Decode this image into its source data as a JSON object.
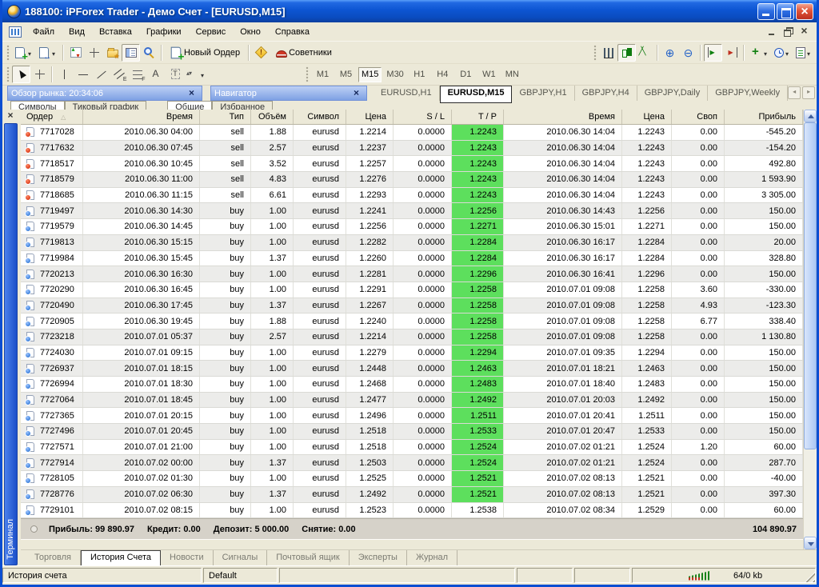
{
  "window": {
    "title": "188100: iPForex Trader - Демо Счет - [EURUSD,M15]"
  },
  "menu": {
    "items": [
      "Файл",
      "Вид",
      "Вставка",
      "Графики",
      "Сервис",
      "Окно",
      "Справка"
    ]
  },
  "toolbar": {
    "new_order_label": "Новый Ордер",
    "advisors_label": "Советники"
  },
  "timeframes": {
    "items": [
      "M1",
      "M5",
      "M15",
      "M30",
      "H1",
      "H4",
      "D1",
      "W1",
      "MN"
    ],
    "active": "M15"
  },
  "panels": {
    "market_watch_title": "Обзор рынка: 20:34:06",
    "market_watch_tabs": [
      "Символы",
      "Тиковый график"
    ],
    "navigator_title": "Навигатор",
    "navigator_tabs": [
      "Общие",
      "Избранное"
    ]
  },
  "chart_tabs": {
    "items": [
      "EURUSD,H1",
      "EURUSD,M15",
      "GBPJPY,H1",
      "GBPJPY,H4",
      "GBPJPY,Daily",
      "GBPJPY,Weekly"
    ],
    "active": "EURUSD,M15"
  },
  "terminal": {
    "vertical_title": "Терминал",
    "sorted_column": "Ордер",
    "sort_direction": "asc",
    "columns": [
      "Ордер",
      "Время",
      "Тип",
      "Объём",
      "Символ",
      "Цена",
      "S / L",
      "T / P",
      "Время",
      "Цена",
      "Своп",
      "Прибыль"
    ],
    "rows": [
      {
        "order": "7717028",
        "open_time": "2010.06.30 04:00",
        "type": "sell",
        "volume": "1.88",
        "symbol": "eurusd",
        "price": "1.2214",
        "sl": "0.0000",
        "tp": "1.2243",
        "tp_hit": true,
        "close_time": "2010.06.30 14:04",
        "close_price": "1.2243",
        "swap": "0.00",
        "profit": "-545.20"
      },
      {
        "order": "7717632",
        "open_time": "2010.06.30 07:45",
        "type": "sell",
        "volume": "2.57",
        "symbol": "eurusd",
        "price": "1.2237",
        "sl": "0.0000",
        "tp": "1.2243",
        "tp_hit": true,
        "close_time": "2010.06.30 14:04",
        "close_price": "1.2243",
        "swap": "0.00",
        "profit": "-154.20"
      },
      {
        "order": "7718517",
        "open_time": "2010.06.30 10:45",
        "type": "sell",
        "volume": "3.52",
        "symbol": "eurusd",
        "price": "1.2257",
        "sl": "0.0000",
        "tp": "1.2243",
        "tp_hit": true,
        "close_time": "2010.06.30 14:04",
        "close_price": "1.2243",
        "swap": "0.00",
        "profit": "492.80"
      },
      {
        "order": "7718579",
        "open_time": "2010.06.30 11:00",
        "type": "sell",
        "volume": "4.83",
        "symbol": "eurusd",
        "price": "1.2276",
        "sl": "0.0000",
        "tp": "1.2243",
        "tp_hit": true,
        "close_time": "2010.06.30 14:04",
        "close_price": "1.2243",
        "swap": "0.00",
        "profit": "1 593.90"
      },
      {
        "order": "7718685",
        "open_time": "2010.06.30 11:15",
        "type": "sell",
        "volume": "6.61",
        "symbol": "eurusd",
        "price": "1.2293",
        "sl": "0.0000",
        "tp": "1.2243",
        "tp_hit": true,
        "close_time": "2010.06.30 14:04",
        "close_price": "1.2243",
        "swap": "0.00",
        "profit": "3 305.00"
      },
      {
        "order": "7719497",
        "open_time": "2010.06.30 14:30",
        "type": "buy",
        "volume": "1.00",
        "symbol": "eurusd",
        "price": "1.2241",
        "sl": "0.0000",
        "tp": "1.2256",
        "tp_hit": true,
        "close_time": "2010.06.30 14:43",
        "close_price": "1.2256",
        "swap": "0.00",
        "profit": "150.00"
      },
      {
        "order": "7719579",
        "open_time": "2010.06.30 14:45",
        "type": "buy",
        "volume": "1.00",
        "symbol": "eurusd",
        "price": "1.2256",
        "sl": "0.0000",
        "tp": "1.2271",
        "tp_hit": true,
        "close_time": "2010.06.30 15:01",
        "close_price": "1.2271",
        "swap": "0.00",
        "profit": "150.00"
      },
      {
        "order": "7719813",
        "open_time": "2010.06.30 15:15",
        "type": "buy",
        "volume": "1.00",
        "symbol": "eurusd",
        "price": "1.2282",
        "sl": "0.0000",
        "tp": "1.2284",
        "tp_hit": true,
        "close_time": "2010.06.30 16:17",
        "close_price": "1.2284",
        "swap": "0.00",
        "profit": "20.00"
      },
      {
        "order": "7719984",
        "open_time": "2010.06.30 15:45",
        "type": "buy",
        "volume": "1.37",
        "symbol": "eurusd",
        "price": "1.2260",
        "sl": "0.0000",
        "tp": "1.2284",
        "tp_hit": true,
        "close_time": "2010.06.30 16:17",
        "close_price": "1.2284",
        "swap": "0.00",
        "profit": "328.80"
      },
      {
        "order": "7720213",
        "open_time": "2010.06.30 16:30",
        "type": "buy",
        "volume": "1.00",
        "symbol": "eurusd",
        "price": "1.2281",
        "sl": "0.0000",
        "tp": "1.2296",
        "tp_hit": true,
        "close_time": "2010.06.30 16:41",
        "close_price": "1.2296",
        "swap": "0.00",
        "profit": "150.00"
      },
      {
        "order": "7720290",
        "open_time": "2010.06.30 16:45",
        "type": "buy",
        "volume": "1.00",
        "symbol": "eurusd",
        "price": "1.2291",
        "sl": "0.0000",
        "tp": "1.2258",
        "tp_hit": true,
        "close_time": "2010.07.01 09:08",
        "close_price": "1.2258",
        "swap": "3.60",
        "profit": "-330.00"
      },
      {
        "order": "7720490",
        "open_time": "2010.06.30 17:45",
        "type": "buy",
        "volume": "1.37",
        "symbol": "eurusd",
        "price": "1.2267",
        "sl": "0.0000",
        "tp": "1.2258",
        "tp_hit": true,
        "close_time": "2010.07.01 09:08",
        "close_price": "1.2258",
        "swap": "4.93",
        "profit": "-123.30"
      },
      {
        "order": "7720905",
        "open_time": "2010.06.30 19:45",
        "type": "buy",
        "volume": "1.88",
        "symbol": "eurusd",
        "price": "1.2240",
        "sl": "0.0000",
        "tp": "1.2258",
        "tp_hit": true,
        "close_time": "2010.07.01 09:08",
        "close_price": "1.2258",
        "swap": "6.77",
        "profit": "338.40"
      },
      {
        "order": "7723218",
        "open_time": "2010.07.01 05:37",
        "type": "buy",
        "volume": "2.57",
        "symbol": "eurusd",
        "price": "1.2214",
        "sl": "0.0000",
        "tp": "1.2258",
        "tp_hit": true,
        "close_time": "2010.07.01 09:08",
        "close_price": "1.2258",
        "swap": "0.00",
        "profit": "1 130.80"
      },
      {
        "order": "7724030",
        "open_time": "2010.07.01 09:15",
        "type": "buy",
        "volume": "1.00",
        "symbol": "eurusd",
        "price": "1.2279",
        "sl": "0.0000",
        "tp": "1.2294",
        "tp_hit": true,
        "close_time": "2010.07.01 09:35",
        "close_price": "1.2294",
        "swap": "0.00",
        "profit": "150.00"
      },
      {
        "order": "7726937",
        "open_time": "2010.07.01 18:15",
        "type": "buy",
        "volume": "1.00",
        "symbol": "eurusd",
        "price": "1.2448",
        "sl": "0.0000",
        "tp": "1.2463",
        "tp_hit": true,
        "close_time": "2010.07.01 18:21",
        "close_price": "1.2463",
        "swap": "0.00",
        "profit": "150.00"
      },
      {
        "order": "7726994",
        "open_time": "2010.07.01 18:30",
        "type": "buy",
        "volume": "1.00",
        "symbol": "eurusd",
        "price": "1.2468",
        "sl": "0.0000",
        "tp": "1.2483",
        "tp_hit": true,
        "close_time": "2010.07.01 18:40",
        "close_price": "1.2483",
        "swap": "0.00",
        "profit": "150.00"
      },
      {
        "order": "7727064",
        "open_time": "2010.07.01 18:45",
        "type": "buy",
        "volume": "1.00",
        "symbol": "eurusd",
        "price": "1.2477",
        "sl": "0.0000",
        "tp": "1.2492",
        "tp_hit": true,
        "close_time": "2010.07.01 20:03",
        "close_price": "1.2492",
        "swap": "0.00",
        "profit": "150.00"
      },
      {
        "order": "7727365",
        "open_time": "2010.07.01 20:15",
        "type": "buy",
        "volume": "1.00",
        "symbol": "eurusd",
        "price": "1.2496",
        "sl": "0.0000",
        "tp": "1.2511",
        "tp_hit": true,
        "close_time": "2010.07.01 20:41",
        "close_price": "1.2511",
        "swap": "0.00",
        "profit": "150.00"
      },
      {
        "order": "7727496",
        "open_time": "2010.07.01 20:45",
        "type": "buy",
        "volume": "1.00",
        "symbol": "eurusd",
        "price": "1.2518",
        "sl": "0.0000",
        "tp": "1.2533",
        "tp_hit": true,
        "close_time": "2010.07.01 20:47",
        "close_price": "1.2533",
        "swap": "0.00",
        "profit": "150.00"
      },
      {
        "order": "7727571",
        "open_time": "2010.07.01 21:00",
        "type": "buy",
        "volume": "1.00",
        "symbol": "eurusd",
        "price": "1.2518",
        "sl": "0.0000",
        "tp": "1.2524",
        "tp_hit": true,
        "close_time": "2010.07.02 01:21",
        "close_price": "1.2524",
        "swap": "1.20",
        "profit": "60.00"
      },
      {
        "order": "7727914",
        "open_time": "2010.07.02 00:00",
        "type": "buy",
        "volume": "1.37",
        "symbol": "eurusd",
        "price": "1.2503",
        "sl": "0.0000",
        "tp": "1.2524",
        "tp_hit": true,
        "close_time": "2010.07.02 01:21",
        "close_price": "1.2524",
        "swap": "0.00",
        "profit": "287.70"
      },
      {
        "order": "7728105",
        "open_time": "2010.07.02 01:30",
        "type": "buy",
        "volume": "1.00",
        "symbol": "eurusd",
        "price": "1.2525",
        "sl": "0.0000",
        "tp": "1.2521",
        "tp_hit": true,
        "close_time": "2010.07.02 08:13",
        "close_price": "1.2521",
        "swap": "0.00",
        "profit": "-40.00"
      },
      {
        "order": "7728776",
        "open_time": "2010.07.02 06:30",
        "type": "buy",
        "volume": "1.37",
        "symbol": "eurusd",
        "price": "1.2492",
        "sl": "0.0000",
        "tp": "1.2521",
        "tp_hit": true,
        "close_time": "2010.07.02 08:13",
        "close_price": "1.2521",
        "swap": "0.00",
        "profit": "397.30"
      },
      {
        "order": "7729101",
        "open_time": "2010.07.02 08:15",
        "type": "buy",
        "volume": "1.00",
        "symbol": "eurusd",
        "price": "1.2523",
        "sl": "0.0000",
        "tp": "1.2538",
        "tp_hit": false,
        "close_time": "2010.07.02 08:34",
        "close_price": "1.2529",
        "swap": "0.00",
        "profit": "60.00"
      }
    ],
    "summary": {
      "items": [
        "Прибыль: 99 890.97",
        "Кредит: 0.00",
        "Депозит: 5 000.00",
        "Снятие: 0.00"
      ],
      "total": "104 890.97"
    },
    "tabs": [
      "Торговля",
      "История Счета",
      "Новости",
      "Сигналы",
      "Почтовый ящик",
      "Эксперты",
      "Журнал"
    ],
    "active_tab": "История Счета"
  },
  "status_bar": {
    "left": "История счета",
    "profile": "Default",
    "traffic": "64/0 kb"
  },
  "colors": {
    "titlebar_blue": "#0c52cc",
    "tp_hit_green": "#5ddf5d",
    "sell_red": "#cc2200",
    "buy_blue": "#1766cc",
    "caption_blue": "#7fa1e4",
    "summary_bg": "#d6d2c9"
  }
}
